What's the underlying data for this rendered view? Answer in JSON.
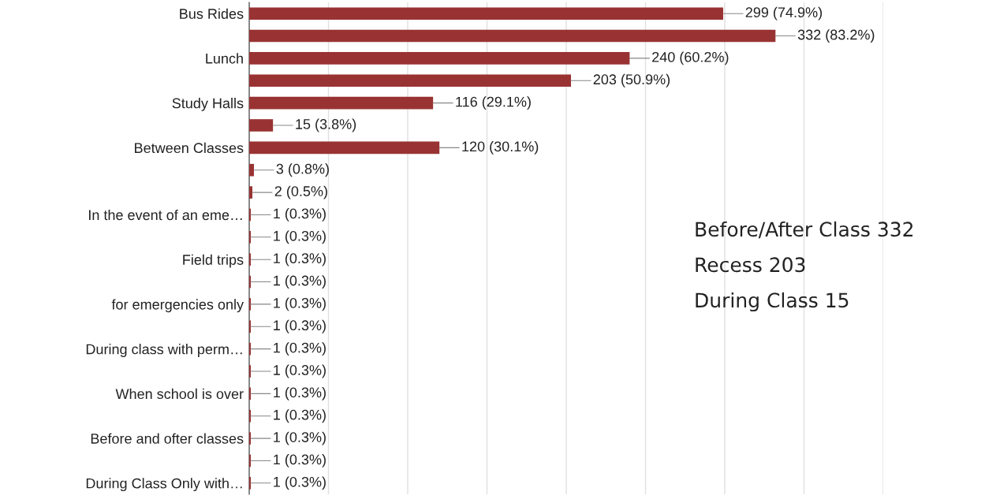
{
  "chart_data": {
    "type": "bar",
    "orientation": "horizontal",
    "categories": [
      "Bus Rides",
      null,
      "Lunch",
      null,
      "Study Halls",
      null,
      "Between Classes",
      null,
      null,
      "In the event of an eme…",
      null,
      "Field trips",
      null,
      "for emergencies only",
      null,
      "During class with perm…",
      null,
      "When school is over",
      null,
      "Before and ofter classes",
      null,
      "During Class Only with…"
    ],
    "values": [
      299,
      332,
      240,
      203,
      116,
      15,
      120,
      3,
      2,
      1,
      1,
      1,
      1,
      1,
      1,
      1,
      1,
      1,
      1,
      1,
      1,
      1
    ],
    "value_labels": [
      "299 (74.9%)",
      "332 (83.2%)",
      "240 (60.2%)",
      "203 (50.9%)",
      "116 (29.1%)",
      "15 (3.8%)",
      "120 (30.1%)",
      "3 (0.8%)",
      "2 (0.5%)",
      "1 (0.3%)",
      "1 (0.3%)",
      "1 (0.3%)",
      "1 (0.3%)",
      "1 (0.3%)",
      "1 (0.3%)",
      "1 (0.3%)",
      "1 (0.3%)",
      "1 (0.3%)",
      "1 (0.3%)",
      "1 (0.3%)",
      "1 (0.3%)",
      "1 (0.3%)"
    ],
    "color": "#993333",
    "xlim": [
      0,
      400
    ],
    "xticks": [
      {
        "value": 0,
        "label": null
      },
      {
        "value": 50,
        "label": null
      },
      {
        "value": 100,
        "label": null
      },
      {
        "value": 150,
        "label": null
      },
      {
        "value": 200,
        "label": null
      },
      {
        "value": 250,
        "label": null
      },
      {
        "value": 300,
        "label": null
      },
      {
        "value": 350,
        "label": null
      },
      {
        "value": 400,
        "label": null
      }
    ],
    "grid": "x",
    "tick_labels": "y",
    "annotations": [
      "Before/After Class 332",
      "Recess 203",
      "During Class 15"
    ]
  }
}
